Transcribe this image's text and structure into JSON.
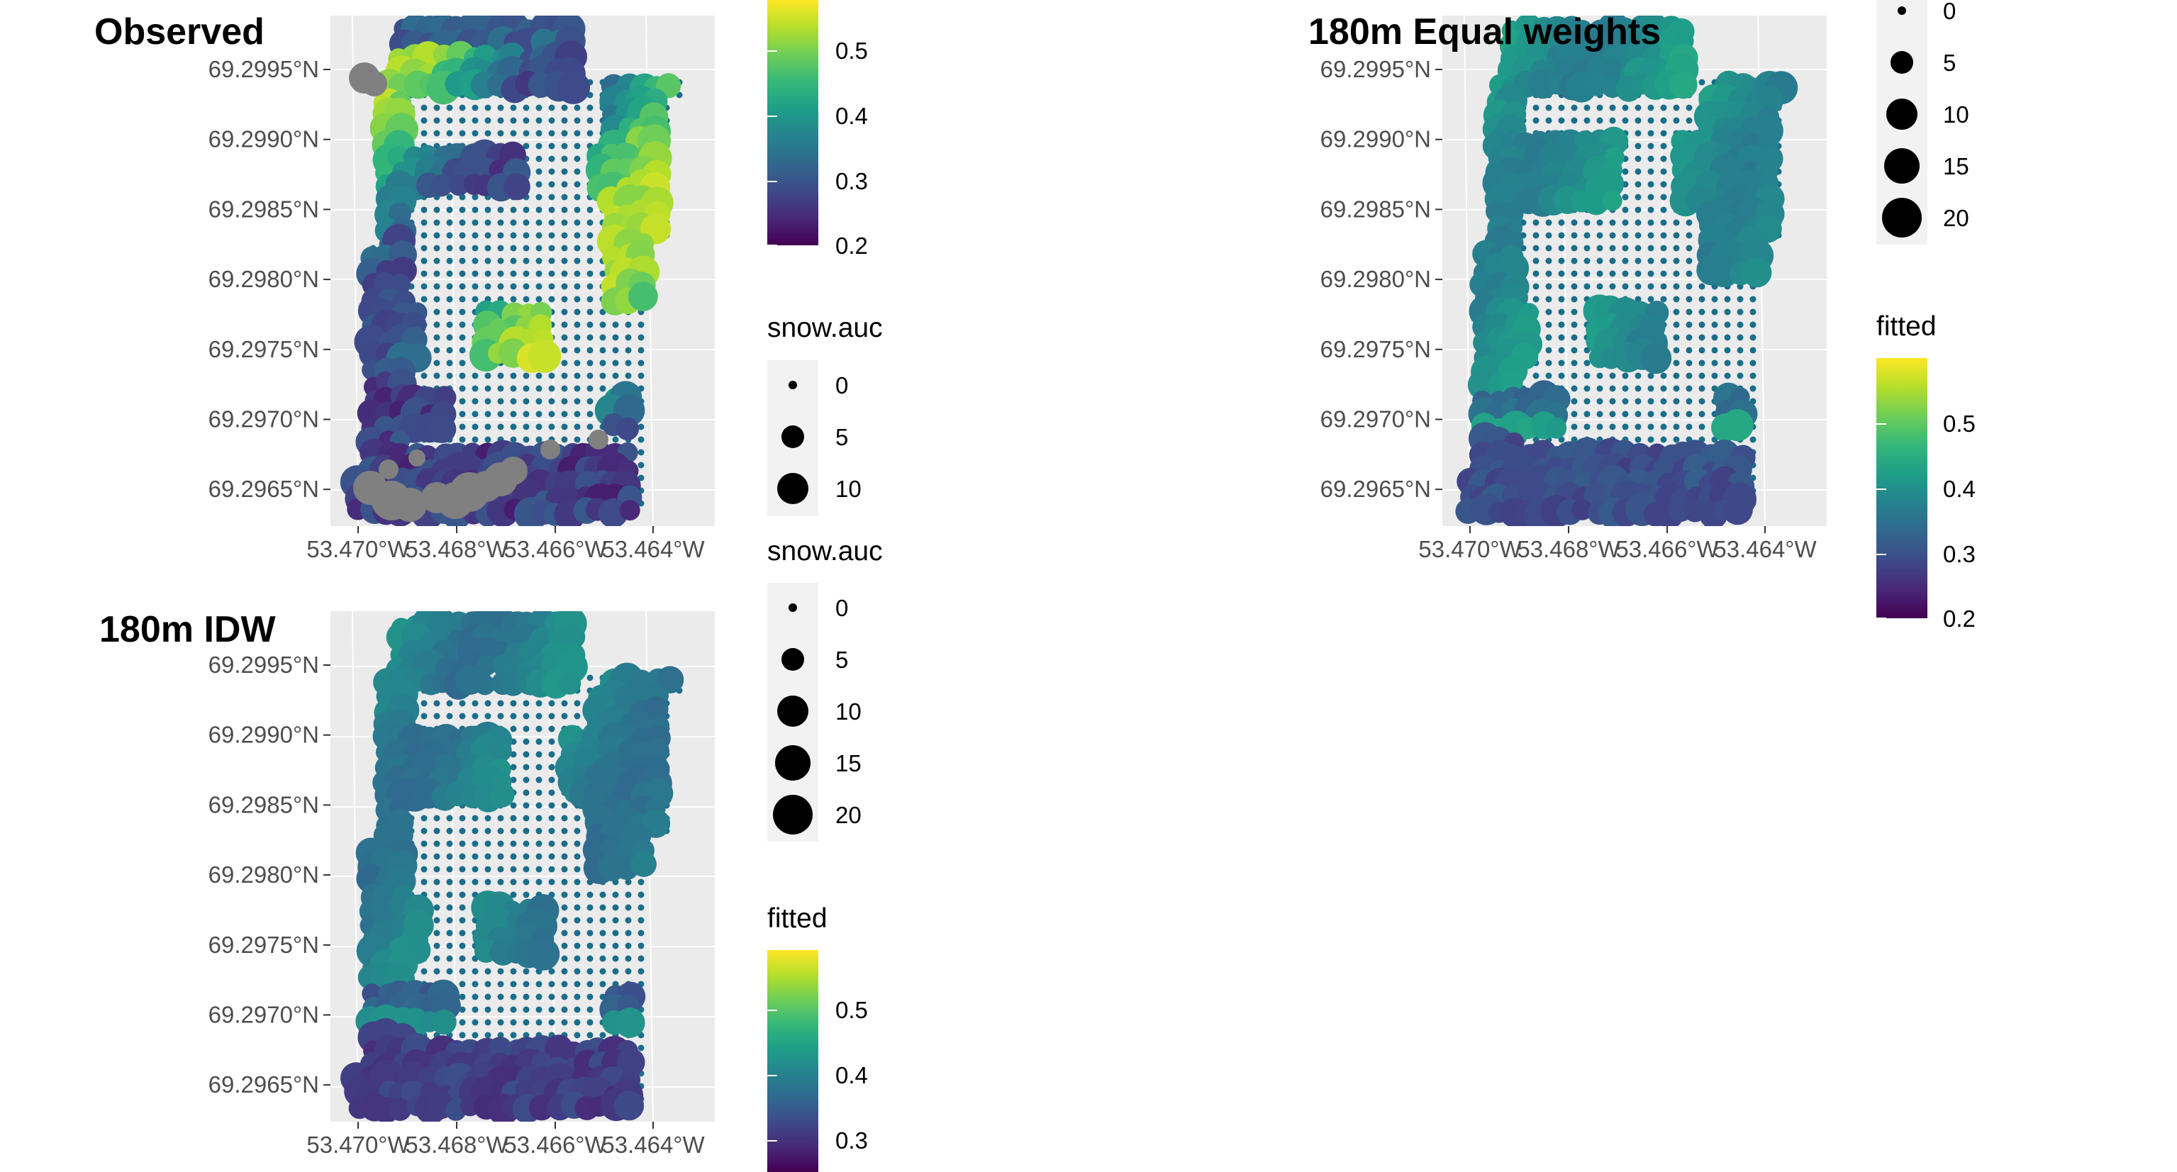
{
  "colors": {
    "panel_bg": "#ebebeb",
    "gridline": "#ffffff",
    "missing": "#808080",
    "dot": "#1b6e8a",
    "legend_key_bg": "#f2f2f2",
    "viridis": [
      "#440154",
      "#482878",
      "#3e4a89",
      "#31688e",
      "#26828e",
      "#1f9e89",
      "#35b779",
      "#6ece58",
      "#b5de2b",
      "#fde725"
    ]
  },
  "chart_data": [
    {
      "type": "scatter",
      "title": "Observed",
      "y_ticks": [
        "69.2995°N",
        "69.2990°N",
        "69.2985°N",
        "69.2980°N",
        "69.2975°N",
        "69.2970°N",
        "69.2965°N"
      ],
      "x_ticks": [
        "53.470°W",
        "53.468°W",
        "53.466°W",
        "53.464°W"
      ],
      "ylim": [
        69.2962,
        69.2999
      ],
      "xlim": [
        -53.4705,
        -53.4632
      ],
      "color_variable": "observed",
      "color_range": [
        0.2,
        0.55
      ],
      "has_missing": true,
      "size_variable": "snow.auc"
    },
    {
      "type": "scatter",
      "title": "180m Equal weights",
      "y_ticks": [
        "69.2995°N",
        "69.2990°N",
        "69.2985°N",
        "69.2980°N",
        "69.2975°N",
        "69.2970°N",
        "69.2965°N"
      ],
      "x_ticks": [
        "53.470°W",
        "53.468°W",
        "53.466°W",
        "53.464°W"
      ],
      "ylim": [
        69.2962,
        69.2999
      ],
      "xlim": [
        -53.4705,
        -53.4632
      ],
      "color_variable": "fitted",
      "color_range": [
        0.2,
        0.6
      ],
      "size_variable": "snow.auc"
    },
    {
      "type": "scatter",
      "title": "180m IDW",
      "y_ticks": [
        "69.2995°N",
        "69.2990°N",
        "69.2985°N",
        "69.2980°N",
        "69.2975°N",
        "69.2970°N",
        "69.2965°N"
      ],
      "x_ticks": [
        "53.470°W",
        "53.468°W",
        "53.466°W",
        "53.464°W"
      ],
      "ylim": [
        69.2962,
        69.2999
      ],
      "xlim": [
        -53.4705,
        -53.4632
      ],
      "color_variable": "fitted",
      "color_range": [
        0.2,
        0.6
      ],
      "size_variable": "snow.auc"
    }
  ],
  "legends": {
    "observed_colorbar": {
      "labels": [
        "0.5",
        "0.4",
        "0.3",
        "0.2"
      ]
    },
    "observed_size": {
      "title": "snow.auc",
      "labels": [
        "0",
        "5",
        "10"
      ]
    },
    "idw_size": {
      "title": "snow.auc",
      "labels": [
        "0",
        "5",
        "10",
        "15",
        "20"
      ]
    },
    "idw_fitted": {
      "title": "fitted",
      "labels": [
        "0.5",
        "0.4",
        "0.3"
      ]
    },
    "equal_size": {
      "labels": [
        "0",
        "5",
        "10",
        "15",
        "20"
      ]
    },
    "equal_fitted": {
      "title": "fitted",
      "labels": [
        "0.5",
        "0.4",
        "0.3",
        "0.2"
      ]
    }
  }
}
